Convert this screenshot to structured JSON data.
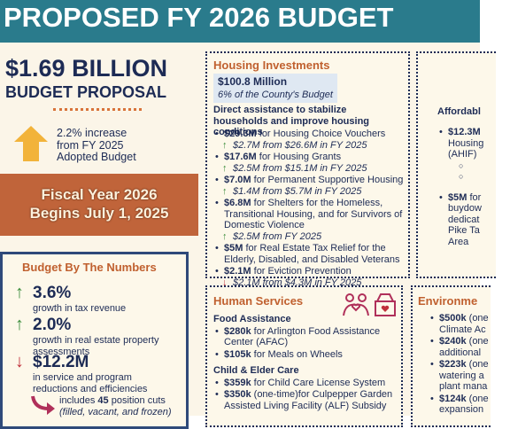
{
  "header": {
    "title": "PROPOSED FY 2026 BUDGET"
  },
  "summary": {
    "amount": "$1.69 BILLION",
    "label": "BUDGET PROPOSAL",
    "increase": [
      "2.2% increase",
      "from FY 2025",
      "Adopted Budget"
    ],
    "fiscal_year": [
      "Fiscal Year 2026",
      "Begins July 1, 2025"
    ]
  },
  "by_numbers": {
    "title": "Budget By The Numbers",
    "items": [
      {
        "value": "3.6%",
        "text": "growth in tax revenue"
      },
      {
        "value": "2.0%",
        "text": "growth in real estate property assessments"
      },
      {
        "value": "$12.2M",
        "text": "in service and program reductions and efficiencies"
      }
    ],
    "note": {
      "pre": "includes ",
      "count": "45",
      "post": " position cuts",
      "paren": "(filled, vacant, and frozen)"
    }
  },
  "housing": {
    "title": "Housing Investments",
    "total": "$100.8 Million",
    "share": "6% of the County's Budget",
    "heading": "Direct assistance to stabilize households and improve housing conditions",
    "items": [
      {
        "amount": "$29.3M",
        "text": " for Housing Choice Vouchers",
        "change": "$2.7M from $26.6M in FY 2025"
      },
      {
        "amount": "$17.6M",
        "text": " for Housing Grants",
        "change": "$2.5M from $15.1M in FY 2025"
      },
      {
        "amount": "$7.0M",
        "text": " for Permanent Supportive Housing",
        "change": "$1.4M from $5.7M in FY 2025"
      },
      {
        "amount": "$6.8M",
        "text": " for Shelters for the Homeless, Transitional Housing, and for Survivors of Domestic Violence",
        "change": "$2.5M from FY 2025"
      },
      {
        "amount": "$5M",
        "text": " for Real Estate Tax Relief for the Elderly, Disabled, and Disabled Veterans"
      },
      {
        "amount": "$2.1M",
        "text": " for Eviction Prevention",
        "change": "$2.1M from $4.3M in FY 2025"
      }
    ]
  },
  "affordable": {
    "title": "Affordabl",
    "items": [
      {
        "amount": "$12.3M",
        "lines": [
          "Housing",
          "(AHIF)"
        ]
      },
      {
        "amount": "$5M",
        "lines": [
          "for",
          "buydow",
          "dedicat",
          "Pike Ta",
          "Area"
        ]
      }
    ]
  },
  "human_services": {
    "title": "Human Services",
    "groups": [
      {
        "heading": "Food Assistance",
        "items": [
          {
            "amount": "$280k",
            "text": " for Arlington Food Assistance Center (AFAC)"
          },
          {
            "amount": "$105k",
            "text": " for Meals on Wheels"
          }
        ]
      },
      {
        "heading": "Child & Elder Care",
        "items": [
          {
            "amount": "$359k",
            "text": " for Child Care License System"
          },
          {
            "amount": "$350k",
            "text": " (one-time)for Culpepper Garden Assisted Living Facility (ALF) Subsidy"
          }
        ]
      }
    ]
  },
  "environment": {
    "title": "Environme",
    "items": [
      {
        "amount": "$500k",
        "lines": [
          " (one",
          "Climate Ac"
        ]
      },
      {
        "amount": "$240k",
        "lines": [
          " (one",
          "additional"
        ]
      },
      {
        "amount": "$223k",
        "lines": [
          " (one",
          "watering a",
          "plant mana"
        ]
      },
      {
        "amount": "$124k",
        "lines": [
          " (one",
          "expansion"
        ]
      }
    ]
  }
}
